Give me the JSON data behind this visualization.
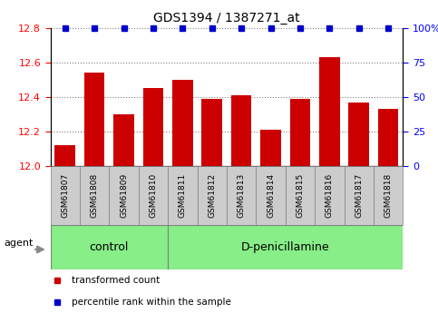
{
  "title": "GDS1394 / 1387271_at",
  "categories": [
    "GSM61807",
    "GSM61808",
    "GSM61809",
    "GSM61810",
    "GSM61811",
    "GSM61812",
    "GSM61813",
    "GSM61814",
    "GSM61815",
    "GSM61816",
    "GSM61817",
    "GSM61818"
  ],
  "bar_values": [
    12.12,
    12.54,
    12.3,
    12.45,
    12.5,
    12.39,
    12.41,
    12.21,
    12.39,
    12.63,
    12.37,
    12.33
  ],
  "percentile_values": [
    100,
    100,
    100,
    100,
    100,
    100,
    100,
    100,
    100,
    100,
    100,
    100
  ],
  "bar_color": "#cc0000",
  "percentile_color": "#0000cc",
  "ylim_left": [
    12.0,
    12.8
  ],
  "ylim_right": [
    0,
    100
  ],
  "yticks_left": [
    12.0,
    12.2,
    12.4,
    12.6,
    12.8
  ],
  "yticks_right": [
    0,
    25,
    50,
    75,
    100
  ],
  "ytick_labels_right": [
    "0",
    "25",
    "50",
    "75",
    "100%"
  ],
  "n_control": 4,
  "n_treatment": 8,
  "control_label": "control",
  "treatment_label": "D-penicillamine",
  "agent_label": "agent",
  "legend_bar_label": "transformed count",
  "legend_pct_label": "percentile rank within the sample",
  "group_bg_color": "#88ee88",
  "tick_bg_color": "#cccccc",
  "background_color": "#ffffff"
}
